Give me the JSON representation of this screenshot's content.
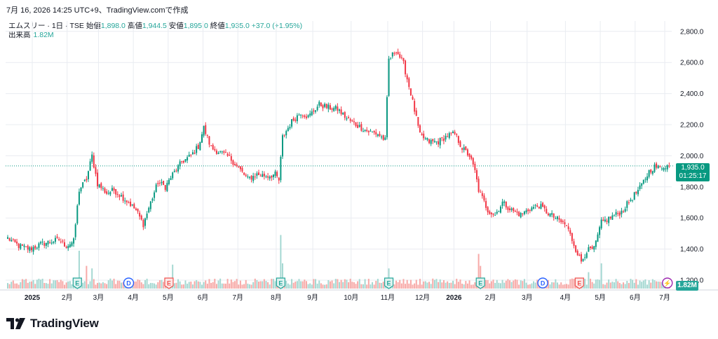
{
  "header": {
    "timestamp": "7月 16, 2026 14:25 UTC+9、TradingView.comで作成"
  },
  "legend": {
    "symbol": "エムスリー · 1日 · TSE",
    "open_label": "始値",
    "open": "1,898.0",
    "high_label": "高値",
    "high": "1,944.5",
    "low_label": "安値",
    "low": "1,895.0",
    "close_label": "終値",
    "close": "1,935.0",
    "change": "+37.0 (+1.95%)"
  },
  "volume_legend": {
    "label": "出来高",
    "value": "1.82M"
  },
  "price_tag": {
    "price": "1,935.0",
    "countdown": "01:25:17"
  },
  "volume_tag": "1.82M",
  "branding": {
    "name": "TradingView"
  },
  "colors": {
    "up": "#26a69a",
    "down": "#ef5350",
    "up_candle": "#089981",
    "down_candle": "#f23645",
    "grid": "#e9ecf1"
  },
  "chart_data": {
    "type": "candlestick",
    "y_ticks": [
      "2,800.0",
      "2,600.0",
      "2,400.0",
      "2,200.0",
      "2,000.0",
      "1,800.0",
      "1,600.0",
      "1,400.0",
      "1,200.0"
    ],
    "y_tick_values": [
      2800,
      2600,
      2400,
      2200,
      2000,
      1800,
      1600,
      1400,
      1200
    ],
    "x_ticks": [
      "2025",
      "2月",
      "3月",
      "4月",
      "5月",
      "6月",
      "7月",
      "8月",
      "9月",
      "10月",
      "11月",
      "12月",
      "2026",
      "2月",
      "3月",
      "4月",
      "5月",
      "6月",
      "7月"
    ],
    "price_anchors": [
      [
        0,
        1470
      ],
      [
        6,
        1420
      ],
      [
        12,
        1400
      ],
      [
        18,
        1430
      ],
      [
        24,
        1450
      ],
      [
        28,
        1460
      ],
      [
        32,
        1420
      ],
      [
        36,
        1450
      ],
      [
        39,
        1780
      ],
      [
        43,
        1850
      ],
      [
        46,
        2000
      ],
      [
        49,
        1820
      ],
      [
        54,
        1760
      ],
      [
        58,
        1780
      ],
      [
        62,
        1740
      ],
      [
        66,
        1700
      ],
      [
        70,
        1650
      ],
      [
        74,
        1560
      ],
      [
        78,
        1700
      ],
      [
        82,
        1830
      ],
      [
        86,
        1800
      ],
      [
        90,
        1880
      ],
      [
        95,
        1960
      ],
      [
        100,
        2000
      ],
      [
        104,
        2060
      ],
      [
        107,
        2180
      ],
      [
        111,
        2050
      ],
      [
        116,
        2020
      ],
      [
        121,
        1990
      ],
      [
        126,
        1920
      ],
      [
        131,
        1850
      ],
      [
        136,
        1880
      ],
      [
        142,
        1870
      ],
      [
        146,
        1880
      ],
      [
        148,
        1840
      ],
      [
        150,
        2120
      ],
      [
        155,
        2220
      ],
      [
        160,
        2280
      ],
      [
        164,
        2250
      ],
      [
        170,
        2330
      ],
      [
        175,
        2310
      ],
      [
        180,
        2300
      ],
      [
        185,
        2240
      ],
      [
        190,
        2200
      ],
      [
        196,
        2160
      ],
      [
        202,
        2140
      ],
      [
        206,
        2100
      ],
      [
        208,
        2620
      ],
      [
        212,
        2680
      ],
      [
        216,
        2590
      ],
      [
        220,
        2400
      ],
      [
        225,
        2130
      ],
      [
        230,
        2090
      ],
      [
        235,
        2090
      ],
      [
        240,
        2130
      ],
      [
        244,
        2140
      ],
      [
        248,
        2050
      ],
      [
        252,
        2000
      ],
      [
        255,
        1900
      ],
      [
        257,
        1780
      ],
      [
        262,
        1650
      ],
      [
        266,
        1620
      ],
      [
        270,
        1700
      ],
      [
        275,
        1650
      ],
      [
        280,
        1620
      ],
      [
        285,
        1660
      ],
      [
        290,
        1680
      ],
      [
        295,
        1630
      ],
      [
        300,
        1590
      ],
      [
        305,
        1550
      ],
      [
        310,
        1400
      ],
      [
        313,
        1320
      ],
      [
        316,
        1390
      ],
      [
        320,
        1400
      ],
      [
        324,
        1570
      ],
      [
        330,
        1610
      ],
      [
        335,
        1640
      ],
      [
        340,
        1720
      ],
      [
        345,
        1790
      ],
      [
        350,
        1900
      ],
      [
        353,
        1930
      ],
      [
        356,
        1920
      ],
      [
        358,
        1935
      ]
    ],
    "volume_spikes": {
      "39": 6.0,
      "43": 3.6,
      "46": 3.2,
      "90": 3.8,
      "149": 8.5,
      "150": 4.0,
      "208": 3.2,
      "257": 5.5,
      "258": 3.6,
      "317": 2.6,
      "324": 4.0
    },
    "event_markers": [
      {
        "bar": 38,
        "label": "E",
        "kind": "earnings"
      },
      {
        "bar": 66,
        "label": "D",
        "kind": "dividend"
      },
      {
        "bar": 88,
        "label": "E",
        "kind": "earnings-negative"
      },
      {
        "bar": 149,
        "label": "E",
        "kind": "earnings"
      },
      {
        "bar": 208,
        "label": "E",
        "kind": "earnings"
      },
      {
        "bar": 258,
        "label": "E",
        "kind": "earnings"
      },
      {
        "bar": 292,
        "label": "D",
        "kind": "dividend"
      },
      {
        "bar": 312,
        "label": "E",
        "kind": "earnings-negative"
      },
      {
        "bar": 360,
        "label": "⚡",
        "kind": "split"
      }
    ],
    "last_price": 1935
  }
}
